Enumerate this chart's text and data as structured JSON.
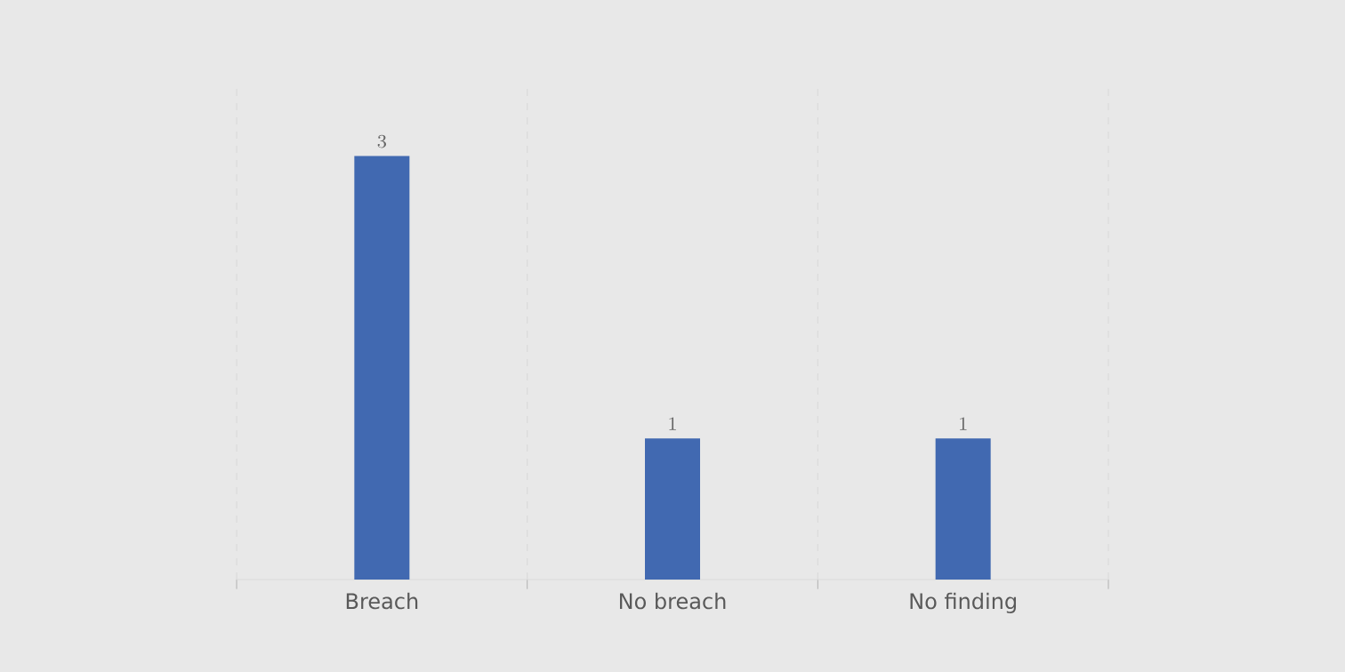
{
  "chart_data": {
    "type": "bar",
    "categories": [
      "Breach",
      "No breach",
      "No finding"
    ],
    "values": [
      3,
      1,
      1
    ],
    "color": "#4169b1",
    "ylim": [
      0,
      3.5
    ],
    "data_labels": true,
    "grid": "x",
    "tick_labels": "x"
  }
}
